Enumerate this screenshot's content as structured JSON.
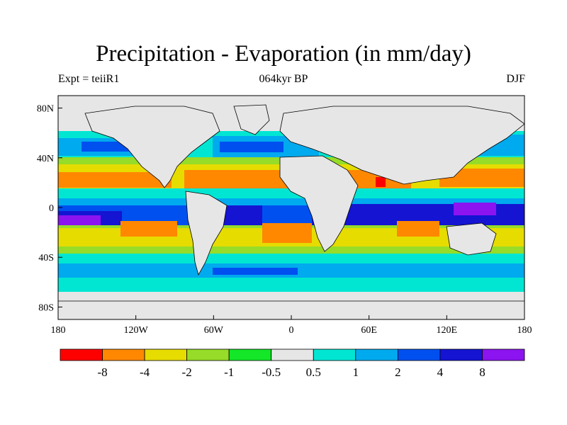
{
  "title": "Precipitation - Evaporation (in mm/day)",
  "subtitle": "064kyr BP",
  "left_label": "Expt = teiiR1",
  "right_label": "DJF",
  "map": {
    "projection": "cylindrical-equidistant",
    "lon_range": [
      -180,
      180
    ],
    "lat_range": [
      -90,
      90
    ],
    "lon_ticks": [
      {
        "value": -180,
        "label": "180"
      },
      {
        "value": -120,
        "label": "120W"
      },
      {
        "value": -60,
        "label": "60W"
      },
      {
        "value": 0,
        "label": "0"
      },
      {
        "value": 60,
        "label": "60E"
      },
      {
        "value": 120,
        "label": "120E"
      },
      {
        "value": 180,
        "label": "180"
      }
    ],
    "lat_ticks": [
      {
        "value": 80,
        "label": "80N"
      },
      {
        "value": 40,
        "label": "40N"
      },
      {
        "value": 0,
        "label": "0"
      },
      {
        "value": -40,
        "label": "40S"
      },
      {
        "value": -80,
        "label": "80S"
      }
    ],
    "neutral_color": "#e6e6e6"
  },
  "colorbar": {
    "colors": [
      "#ff0000",
      "#ff8800",
      "#e6dc00",
      "#96dc28",
      "#14e628",
      "#e6e6e6",
      "#00e6d2",
      "#00aaee",
      "#0050f0",
      "#1414d2",
      "#8c14f0"
    ],
    "boundaries": [
      "-8",
      "-4",
      "-2",
      "-1",
      "-0.5",
      "0.5",
      "1",
      "2",
      "4",
      "8"
    ]
  },
  "chart_data": {
    "type": "heatmap",
    "title": "Precipitation - Evaporation (in mm/day)",
    "subtitle": "064kyr BP",
    "variable": "Precipitation - Evaporation",
    "units": "mm/day",
    "season": "DJF",
    "experiment": "teiiR1",
    "levels": [
      -8,
      -4,
      -2,
      -1,
      -0.5,
      0.5,
      1,
      2,
      4,
      8
    ],
    "zonal_mean_profile": [
      {
        "lat": 70,
        "value": 0.7
      },
      {
        "lat": 50,
        "value": 1.5
      },
      {
        "lat": 40,
        "value": 2.2
      },
      {
        "lat": 30,
        "value": -0.8
      },
      {
        "lat": 18,
        "value": -3.0
      },
      {
        "lat": 8,
        "value": -1.5
      },
      {
        "lat": 0,
        "value": 3.0
      },
      {
        "lat": -10,
        "value": 5.0
      },
      {
        "lat": -22,
        "value": -2.5
      },
      {
        "lat": -32,
        "value": -1.5
      },
      {
        "lat": -45,
        "value": 1.2
      },
      {
        "lat": -58,
        "value": 1.5
      },
      {
        "lat": -72,
        "value": 0.3
      }
    ]
  }
}
